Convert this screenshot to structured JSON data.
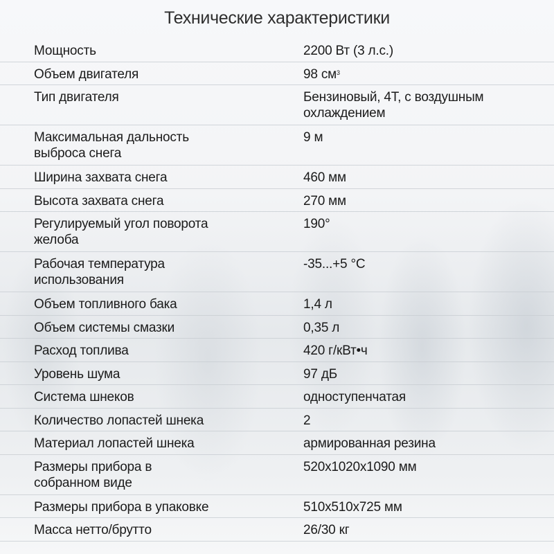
{
  "title": "Технические характеристики",
  "specs": [
    {
      "label": "Мощность",
      "value": "2200 Вт (3 л.с.)"
    },
    {
      "label": "Объем двигателя",
      "value": "98 см",
      "sup": "3"
    },
    {
      "label": "Тип двигателя",
      "value": "Бензиновый, 4Т, с воздушным охлаждением"
    },
    {
      "label": "Максимальная дальность выброса снега",
      "value": "9 м"
    },
    {
      "label": "Ширина захвата снега",
      "value": "460 мм"
    },
    {
      "label": "Высота захвата снега",
      "value": "270 мм"
    },
    {
      "label": "Регулируемый угол поворота желоба",
      "value": "190°"
    },
    {
      "label": "Рабочая температура использования",
      "value": "-35...+5 °C"
    },
    {
      "label": "Объем топливного бака",
      "value": "1,4 л"
    },
    {
      "label": "Объем системы смазки",
      "value": "0,35 л"
    },
    {
      "label": "Расход топлива",
      "value": "420 г/кВт•ч"
    },
    {
      "label": "Уровень шума",
      "value": "97 дБ"
    },
    {
      "label": "Система шнеков",
      "value": "одноступенчатая"
    },
    {
      "label": "Количество лопастей шнека",
      "value": "2"
    },
    {
      "label": "Материал лопастей шнека",
      "value": "армированная резина"
    },
    {
      "label": "Размеры прибора в собранном виде",
      "value": "520x1020x1090 мм"
    },
    {
      "label": "Размеры прибора в упаковке",
      "value": "510x510x725 мм"
    },
    {
      "label": "Масса нетто/брутто",
      "value": "26/30 кг"
    }
  ]
}
